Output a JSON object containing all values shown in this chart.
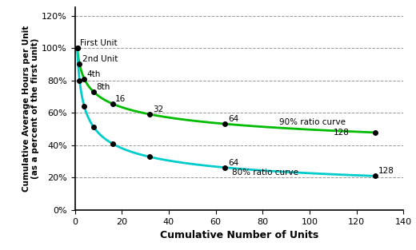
{
  "xlabel": "Cumulative Number of Units",
  "ylabel": "Cumulative Average Hours per Unit\n(as a percent of the first unit)",
  "xlim": [
    0,
    140
  ],
  "ylim": [
    0.0,
    1.25
  ],
  "yticks": [
    0.0,
    0.2,
    0.4,
    0.6,
    0.8,
    1.0,
    1.2
  ],
  "ytick_labels": [
    "0%",
    "20%",
    "40%",
    "60%",
    "80%",
    "100%",
    "120%"
  ],
  "xticks": [
    0,
    20,
    40,
    60,
    80,
    100,
    120,
    140
  ],
  "curve90_color": "#00bb00",
  "curve80_color": "#00cccc",
  "marker_color": "#000000",
  "background_color": "#ffffff",
  "units": [
    1,
    2,
    4,
    8,
    16,
    32,
    64,
    128
  ],
  "ratio90": 0.9,
  "ratio80": 0.8,
  "curve90_start": 1.0,
  "curve80_start": 1.0,
  "label_90": "90% ratio curve",
  "label_80": "80% ratio curve",
  "label_first": "First Unit",
  "label_2nd": "2nd Unit",
  "label_4th": "4th",
  "label_8th": "8th",
  "label_16": "16",
  "label_32": "32",
  "label_64": "64",
  "label_128": "128",
  "figsize": [
    5.2,
    3.13
  ],
  "dpi": 100
}
